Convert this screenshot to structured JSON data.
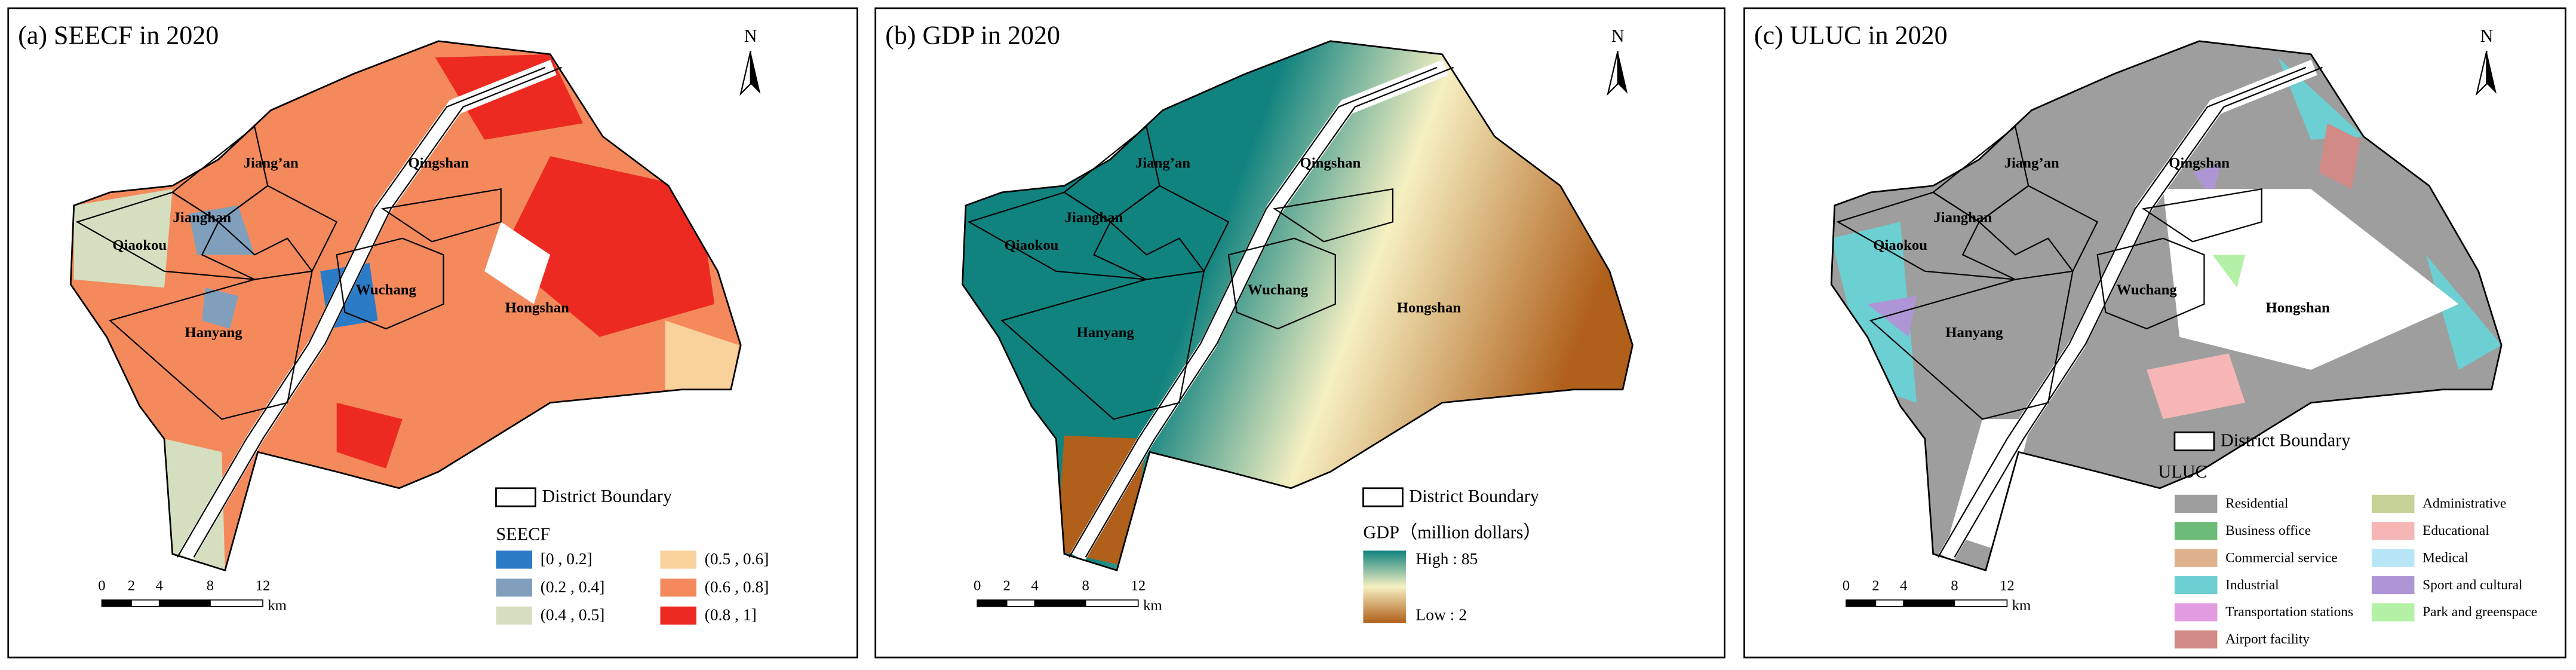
{
  "panels": [
    {
      "title": "(a) SEECF in 2020",
      "north": "N",
      "districts": [
        "Jiang’an",
        "Jianghan",
        "Qiaokou",
        "Wuchang",
        "Hongshan",
        "Hanyang",
        "Qingshan"
      ],
      "boundary_legend": "District Boundary",
      "legend_title": "SEECF",
      "legend_items": [
        {
          "label": "[0 , 0.2]",
          "color": "#2c7bc6"
        },
        {
          "label": "(0.2 , 0.4]",
          "color": "#7f9fbd"
        },
        {
          "label": "(0.4 , 0.5]",
          "color": "#d5dfc0"
        },
        {
          "label": "(0.5 , 0.6]",
          "color": "#f8d19b"
        },
        {
          "label": "(0.6 , 0.8]",
          "color": "#f48a5c"
        },
        {
          "label": "(0.8 , 1]",
          "color": "#ec2a22"
        }
      ],
      "scale": {
        "ticks": [
          "0",
          "2",
          "4",
          "8",
          "12"
        ],
        "unit": "km"
      }
    },
    {
      "title": "(b) GDP in 2020",
      "north": "N",
      "districts": [
        "Jiang’an",
        "Jianghan",
        "Qiaokou",
        "Wuchang",
        "Hongshan",
        "Hanyang",
        "Qingshan"
      ],
      "boundary_legend": "District Boundary",
      "legend_title": "GDP（million dollars）",
      "gradient": {
        "high": "High : 85",
        "low": "Low : 2",
        "high_color": "#11837f",
        "mid_color": "#f6f0c2",
        "low_color": "#b0601b"
      },
      "scale": {
        "ticks": [
          "0",
          "2",
          "4",
          "8",
          "12"
        ],
        "unit": "km"
      }
    },
    {
      "title": "(c) ULUC in 2020",
      "north": "N",
      "districts": [
        "Jiang’an",
        "Jianghan",
        "Qiaokou",
        "Wuchang",
        "Hongshan",
        "Hanyang",
        "Qingshan"
      ],
      "boundary_legend": "District Boundary",
      "legend_title": "ULUC",
      "legend_items": [
        {
          "label": "Residential",
          "color": "#9e9e9e"
        },
        {
          "label": "Business office",
          "color": "#6dbb78"
        },
        {
          "label": "Commercial service",
          "color": "#deb08c"
        },
        {
          "label": "Industrial",
          "color": "#6ccfd2"
        },
        {
          "label": "Transportation stations",
          "color": "#e39be0"
        },
        {
          "label": "Airport facility",
          "color": "#d28a87"
        },
        {
          "label": "Administrative",
          "color": "#c5d195"
        },
        {
          "label": "Educational",
          "color": "#f6b6b6"
        },
        {
          "label": "Medical",
          "color": "#b8e6f7"
        },
        {
          "label": "Sport and cultural",
          "color": "#ae96d6"
        },
        {
          "label": "Park and greenspace",
          "color": "#b4f0a6"
        }
      ],
      "scale": {
        "ticks": [
          "0",
          "2",
          "4",
          "8",
          "12"
        ],
        "unit": "km"
      }
    }
  ]
}
